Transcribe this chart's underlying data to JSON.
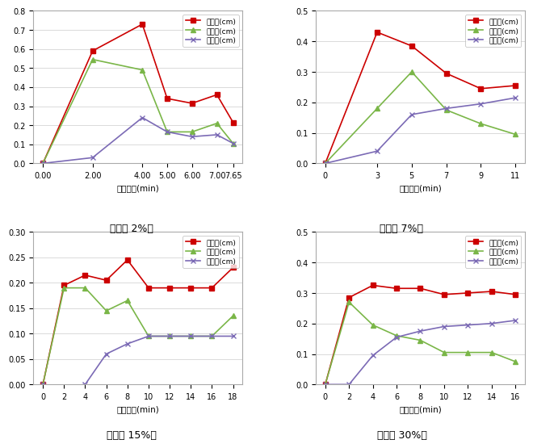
{
  "plots": [
    {
      "title": "〈경사 2%〉",
      "xlabel": "측정시간(min)",
      "ylim": [
        0,
        0.8
      ],
      "yticks": [
        0,
        0.1,
        0.2,
        0.3,
        0.4,
        0.5,
        0.6,
        0.7,
        0.8
      ],
      "rainfall_x": [
        0,
        2,
        4,
        5,
        6,
        7,
        7.65
      ],
      "rainfall_y": [
        0,
        0.59,
        0.73,
        0.34,
        0.315,
        0.36,
        0.215
      ],
      "infiltration_x": [
        0,
        2,
        4,
        5,
        6,
        7,
        7.65
      ],
      "infiltration_y": [
        0,
        0.545,
        0.49,
        0.165,
        0.165,
        0.21,
        0.105
      ],
      "runoff_x": [
        0,
        2,
        4,
        5,
        6,
        7,
        7.65
      ],
      "runoff_y": [
        0,
        0.03,
        0.24,
        0.165,
        0.14,
        0.15,
        0.105
      ]
    },
    {
      "title": "〈경사 7%〉",
      "xlabel": "측정시간(min)",
      "ylim": [
        0,
        0.5
      ],
      "yticks": [
        0,
        0.1,
        0.2,
        0.3,
        0.4,
        0.5
      ],
      "rainfall_x": [
        0,
        3,
        5,
        7,
        9,
        11
      ],
      "rainfall_y": [
        0,
        0.43,
        0.385,
        0.295,
        0.245,
        0.255
      ],
      "infiltration_x": [
        0,
        3,
        5,
        7,
        9,
        11
      ],
      "infiltration_y": [
        0,
        0.18,
        0.3,
        0.175,
        0.13,
        0.095
      ],
      "runoff_x": [
        0,
        3,
        5,
        7,
        9,
        11
      ],
      "runoff_y": [
        0,
        0.04,
        0.16,
        0.18,
        0.195,
        0.215
      ]
    },
    {
      "title": "〈경사 15%〉",
      "xlabel": "측정시간(min)",
      "ylim": [
        0,
        0.3
      ],
      "yticks": [
        0,
        0.05,
        0.1,
        0.15,
        0.2,
        0.25,
        0.3
      ],
      "rainfall_x": [
        0,
        2,
        4,
        6,
        8,
        10,
        12,
        14,
        16,
        18
      ],
      "rainfall_y": [
        0,
        0.195,
        0.215,
        0.205,
        0.245,
        0.19,
        0.19,
        0.19,
        0.19,
        0.23
      ],
      "infiltration_x": [
        0,
        2,
        4,
        6,
        8,
        10,
        12,
        14,
        16,
        18
      ],
      "infiltration_y": [
        0,
        0.19,
        0.19,
        0.145,
        0.165,
        0.095,
        0.095,
        0.095,
        0.095,
        0.135
      ],
      "runoff_x": [
        0,
        2,
        4,
        6,
        8,
        10,
        12,
        14,
        16,
        18
      ],
      "runoff_y": [
        0,
        -0.005,
        0.0,
        0.06,
        0.08,
        0.095,
        0.095,
        0.095,
        0.095,
        0.095
      ]
    },
    {
      "title": "〈경사 30%〉",
      "xlabel": "측정시간(min)",
      "ylim": [
        0,
        0.5
      ],
      "yticks": [
        0,
        0.1,
        0.2,
        0.3,
        0.4,
        0.5
      ],
      "rainfall_x": [
        0,
        2,
        4,
        6,
        8,
        10,
        12,
        14,
        16
      ],
      "rainfall_y": [
        0,
        0.285,
        0.325,
        0.315,
        0.315,
        0.295,
        0.3,
        0.305,
        0.295
      ],
      "infiltration_x": [
        0,
        2,
        4,
        6,
        8,
        10,
        12,
        14,
        16
      ],
      "infiltration_y": [
        0,
        0.27,
        0.195,
        0.16,
        0.145,
        0.105,
        0.105,
        0.105,
        0.075
      ],
      "runoff_x": [
        0,
        2,
        4,
        6,
        8,
        10,
        12,
        14,
        16
      ],
      "runoff_y": [
        0,
        0.0,
        0.095,
        0.155,
        0.175,
        0.19,
        0.195,
        0.2,
        0.21
      ]
    }
  ],
  "legend_labels": [
    "강우량(cm)",
    "침투량(cm)",
    "유출량(cm)"
  ],
  "colors": {
    "rainfall": "#cc0000",
    "infiltration": "#7ab648",
    "runoff": "#7b6ab5"
  },
  "marker": "s",
  "linewidth": 1.2,
  "markersize": 4
}
